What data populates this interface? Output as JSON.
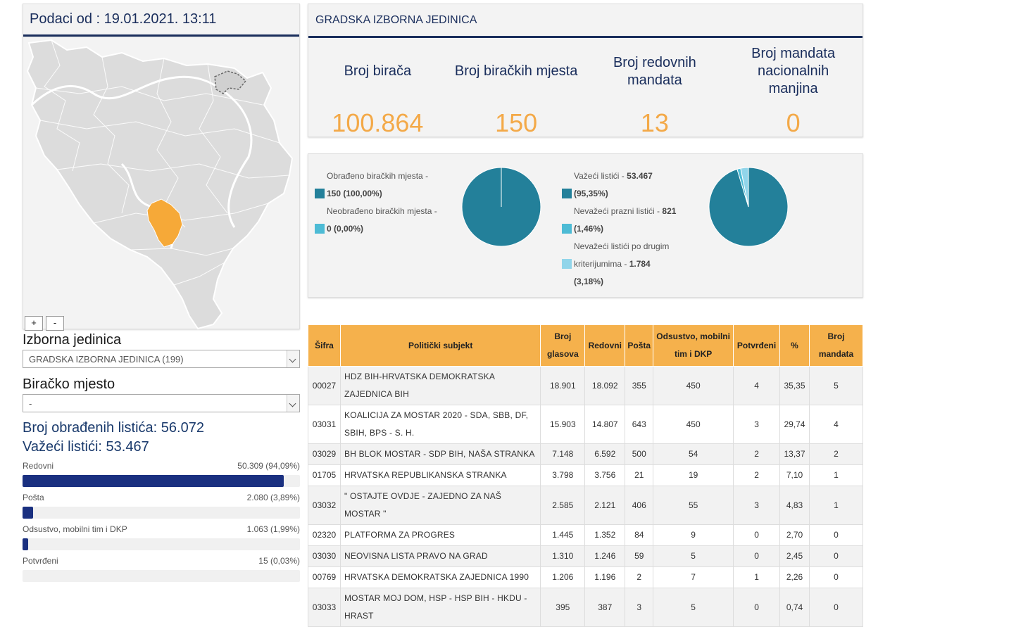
{
  "left": {
    "date_header": "Podaci od : 19.01.2021. 13:11",
    "zoom_in": "+",
    "zoom_out": "-",
    "unit_label": "Izborna jedinica",
    "unit_value": "GRADSKA IZBORNA JEDINICA (199)",
    "station_label": "Biračko mjesto",
    "station_value": "-",
    "processed_ballots": "Broj obrađenih listića: 56.072",
    "valid_ballots": "Važeći listići: 53.467",
    "bars": [
      {
        "label": "Redovni",
        "value": "50.309 (94,09%)",
        "fraction": 0.9409
      },
      {
        "label": "Pošta",
        "value": "2.080 (3,89%)",
        "fraction": 0.0389
      },
      {
        "label": "Odsustvo, mobilni tim i DKP",
        "value": "1.063 (1,99%)",
        "fraction": 0.0199
      },
      {
        "label": "Potvrđeni",
        "value": "15 (0,03%)",
        "fraction": 0.0003
      }
    ],
    "colors": {
      "bar": "#1a3080",
      "map_highlight": "#f6a938",
      "map_base": "#dcdcdc"
    }
  },
  "top": {
    "title": "GRADSKA IZBORNA JEDINICA",
    "stats": [
      {
        "label": "Broj birača",
        "value": "100.864"
      },
      {
        "label": "Broj biračkih mjesta",
        "value": "150"
      },
      {
        "label": "Broj redovnih mandata",
        "value": "13"
      },
      {
        "label": "Broj mandata nacionalnih manjina",
        "value": "0"
      }
    ]
  },
  "pies": {
    "left_legend": [
      {
        "text": "Obrađeno biračkih mjesta -",
        "bold": "150 (100,00%)",
        "color": "#23809a"
      },
      {
        "text": "Neobrađeno biračkih mjesta -",
        "bold": "0 (0,00%)",
        "color": "#4dbbd5"
      }
    ],
    "right_legend": [
      {
        "text": "Važeći listići -",
        "bold": "53.467",
        "bold2": "(95,35%)",
        "color": "#23809a"
      },
      {
        "text": "Nevažeći prazni listići -",
        "bold": "821",
        "bold2": "(1,46%)",
        "color": "#4dbbd5"
      },
      {
        "text": "Nevažeći listići po drugim",
        "text2": "kriterijumima -",
        "bold": "1.784",
        "bold2": "(3,18%)",
        "color": "#91d5ea"
      }
    ]
  },
  "chart_data": [
    {
      "type": "pie",
      "labels": [
        "Obrađeno biračkih mjesta",
        "Neobrađeno biračkih mjesta"
      ],
      "values": [
        150,
        0
      ],
      "colors": [
        "#23809a",
        "#4dbbd5"
      ]
    },
    {
      "type": "pie",
      "labels": [
        "Važeći listići",
        "Nevažeći prazni listići",
        "Nevažeći listići po drugim kriterijumima"
      ],
      "values": [
        53467,
        821,
        1784
      ],
      "colors": [
        "#23809a",
        "#4dbbd5",
        "#91d5ea"
      ]
    }
  ],
  "table": {
    "headers": [
      "Šifra",
      "Politički subjekt",
      "Broj glasova",
      "Redovni",
      "Pošta",
      "Odsustvo, mobilni tim i DKP",
      "Potvrđeni",
      "%",
      "Broj mandata"
    ],
    "rows": [
      [
        "00027",
        "HDZ BIH-HRVATSKA DEMOKRATSKA ZAJEDNICA BIH",
        "18.901",
        "18.092",
        "355",
        "450",
        "4",
        "35,35",
        "5"
      ],
      [
        "03031",
        "KOALICIJA ZA MOSTAR 2020 - SDA, SBB, DF, SBIH, BPS - S. H.",
        "15.903",
        "14.807",
        "643",
        "450",
        "3",
        "29,74",
        "4"
      ],
      [
        "03029",
        "BH BLOK MOSTAR - SDP BIH, NAŠA STRANKA",
        "7.148",
        "6.592",
        "500",
        "54",
        "2",
        "13,37",
        "2"
      ],
      [
        "01705",
        "HRVATSKA REPUBLIKANSKA STRANKA",
        "3.798",
        "3.756",
        "21",
        "19",
        "2",
        "7,10",
        "1"
      ],
      [
        "03032",
        "\" OSTAJTE OVDJE - ZAJEDNO ZA NAŠ MOSTAR \"",
        "2.585",
        "2.121",
        "406",
        "55",
        "3",
        "4,83",
        "1"
      ],
      [
        "02320",
        "PLATFORMA ZA PROGRES",
        "1.445",
        "1.352",
        "84",
        "9",
        "0",
        "2,70",
        "0"
      ],
      [
        "03030",
        "NEOVISNA LISTA PRAVO NA GRAD",
        "1.310",
        "1.246",
        "59",
        "5",
        "0",
        "2,45",
        "0"
      ],
      [
        "00769",
        "HRVATSKA DEMOKRATSKA ZAJEDNICA 1990",
        "1.206",
        "1.196",
        "2",
        "7",
        "1",
        "2,26",
        "0"
      ],
      [
        "03033",
        "MOSTAR MOJ DOM, HSP - HSP BIH - HKDU - HRAST",
        "395",
        "387",
        "3",
        "5",
        "0",
        "0,74",
        "0"
      ]
    ]
  }
}
